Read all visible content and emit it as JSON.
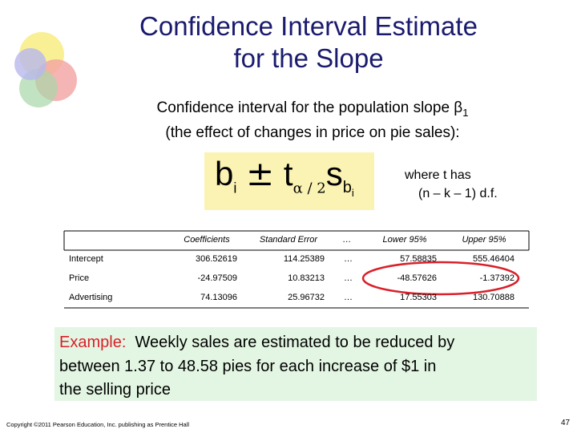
{
  "title": {
    "lines": [
      "Confidence Interval Estimate",
      "for the Slope"
    ]
  },
  "intro": {
    "lines": [
      "Confidence interval for the population slope β",
      "(the effect of changes in price on pie sales):"
    ],
    "subscript": "1"
  },
  "formula": {
    "b": "b",
    "b_sub": "i",
    "pm": "±",
    "t": "t",
    "t_sub": "α / 2",
    "s": "s",
    "s_sub": "b",
    "s_sub_sub": "i"
  },
  "note": {
    "lines": [
      "where t has",
      "(n – k – 1) d.f."
    ]
  },
  "table": {
    "header": [
      "Coefficients",
      "Standard Error",
      "…",
      "Lower 95%",
      "Upper 95%"
    ],
    "rows": [
      [
        "Intercept",
        "306.52619",
        "114.25389",
        "…",
        "57.58835",
        "555.46404"
      ],
      [
        "Price",
        "-24.97509",
        "10.83213",
        "…",
        "-48.57626",
        "-1.37392"
      ],
      [
        "Advertising",
        "74.13096",
        "25.96732",
        "…",
        "17.55303",
        "130.70888"
      ]
    ]
  },
  "example": {
    "label": "Example:",
    "lines": [
      "Weekly sales are estimated to be reduced by",
      "between 1.37 to 48.58 pies for each increase of $1 in",
      "the selling price"
    ]
  },
  "footer": {
    "copyright": "Copyright ©2011 Pearson Education, Inc. publishing as Prentice Hall",
    "page": "47"
  }
}
